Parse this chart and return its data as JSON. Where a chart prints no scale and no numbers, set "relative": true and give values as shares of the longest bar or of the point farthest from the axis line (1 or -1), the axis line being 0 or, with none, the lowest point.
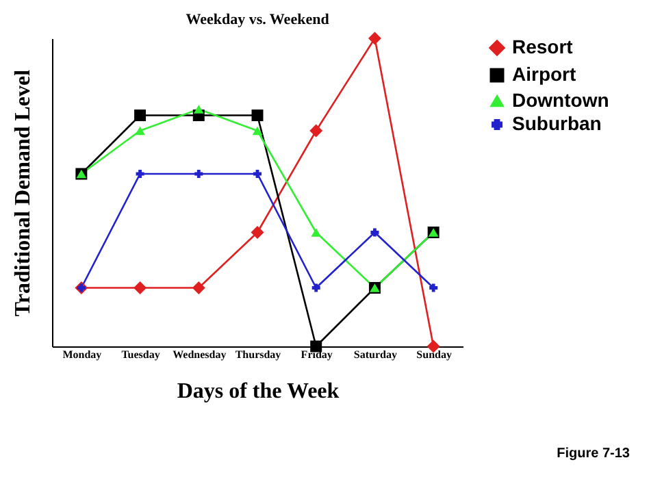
{
  "chart_data": {
    "type": "line",
    "title": "Weekday vs. Weekend",
    "xlabel": "Days of the Week",
    "ylabel": "Traditional Demand Level",
    "relative": true,
    "legend": "top right",
    "annotations": [
      "Figure 7-13"
    ],
    "categories": [
      "Monday",
      "Tuesday",
      "Wednesday",
      "Thursday",
      "Friday",
      "Saturday",
      "Sunday"
    ],
    "series": [
      {
        "name": "Resort",
        "color": "#e02020",
        "marker": "diamond",
        "values": [
          0.19,
          0.19,
          0.19,
          0.37,
          0.7,
          1,
          0
        ]
      },
      {
        "name": "Airport",
        "color": "#000000",
        "marker": "square",
        "values": [
          0.56,
          0.75,
          0.75,
          0.75,
          0,
          0.19,
          0.37
        ]
      },
      {
        "name": "Downtown",
        "color": "#33ee33",
        "marker": "triangle",
        "values": [
          0.56,
          0.7,
          0.77,
          0.7,
          0.37,
          0.19,
          0.37
        ]
      },
      {
        "name": "Suburban",
        "color": "#2222cc",
        "marker": "cross",
        "values": [
          0.19,
          0.56,
          0.56,
          0.56,
          0.19,
          0.37,
          0.19
        ]
      }
    ]
  }
}
